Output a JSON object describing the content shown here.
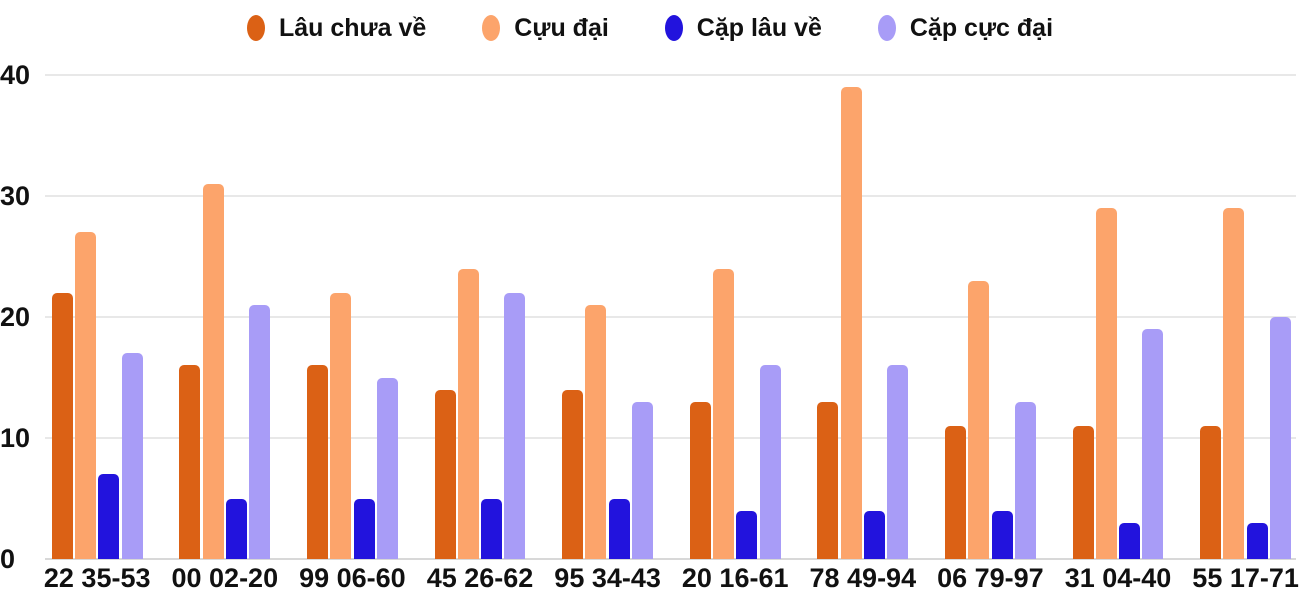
{
  "chart_data": {
    "type": "bar",
    "title": "",
    "categories": [
      "22 35-53",
      "00 02-20",
      "99 06-60",
      "45 26-62",
      "95 34-43",
      "20 16-61",
      "78 49-94",
      "06 79-97",
      "31 04-40",
      "55 17-71"
    ],
    "series": [
      {
        "name": "Lâu chưa về",
        "color": "#DB6115",
        "values": [
          22,
          16,
          16,
          14,
          14,
          13,
          13,
          11,
          11,
          11
        ]
      },
      {
        "name": "Cựu đại",
        "color": "#FCA46B",
        "values": [
          27,
          31,
          22,
          24,
          21,
          24,
          39,
          23,
          29,
          29
        ]
      },
      {
        "name": "Cặp lâu về",
        "color": "#2213DD",
        "values": [
          7,
          5,
          5,
          5,
          5,
          4,
          4,
          4,
          3,
          3
        ]
      },
      {
        "name": "Cặp cực đại",
        "color": "#A89CF7",
        "values": [
          17,
          21,
          15,
          22,
          13,
          16,
          16,
          13,
          19,
          20
        ]
      }
    ],
    "xlabel": "",
    "ylabel": "",
    "ylim": [
      0,
      40
    ],
    "yticks": [
      0,
      10,
      20,
      30,
      40
    ],
    "grid": true,
    "legend_position": "top"
  },
  "style_colors": {
    "gridline": "#E8E8E8",
    "axis_line": "#D8D8D8",
    "text": "#111111",
    "background": "#FFFFFF"
  }
}
